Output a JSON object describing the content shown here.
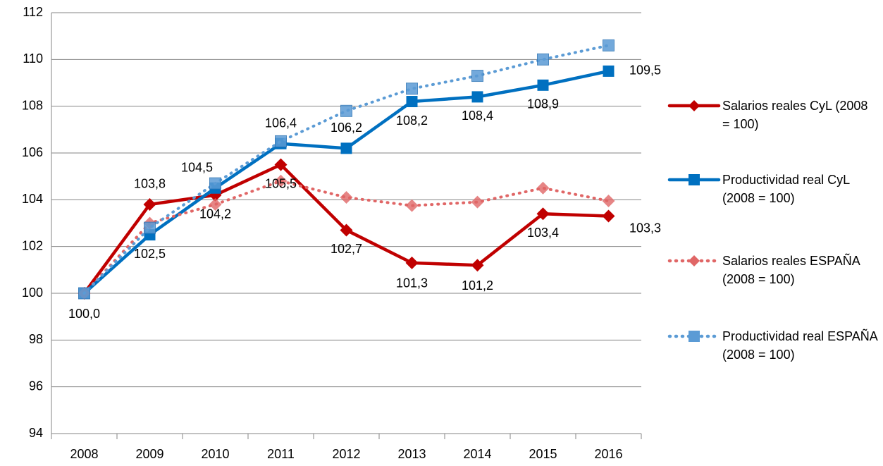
{
  "chart_data": {
    "type": "line",
    "categories": [
      "2008",
      "2009",
      "2010",
      "2011",
      "2012",
      "2013",
      "2014",
      "2015",
      "2016"
    ],
    "ylim": [
      94,
      112
    ],
    "yticks": [
      94,
      96,
      98,
      100,
      102,
      104,
      106,
      108,
      110,
      112
    ],
    "grid": true,
    "series": [
      {
        "name": "Salarios reales CyL (2008 = 100)",
        "color": "#c00000",
        "style": "solid",
        "marker": "diamond",
        "values": [
          100.0,
          103.8,
          104.2,
          105.5,
          102.7,
          101.3,
          101.2,
          103.4,
          103.3
        ],
        "value_labels": [
          "100,0",
          "103,8",
          "104,2",
          "105,5",
          "102,7",
          "101,3",
          "101,2",
          "103,4",
          "103,3"
        ]
      },
      {
        "name": "Productividad real CyL (2008 = 100)",
        "color": "#0070c0",
        "style": "solid",
        "marker": "square",
        "values": [
          100.0,
          102.5,
          104.5,
          106.4,
          106.2,
          108.2,
          108.4,
          108.9,
          109.5
        ],
        "value_labels": [
          null,
          "102,5",
          "104,5",
          "106,4",
          "106,2",
          "108,2",
          "108,4",
          "108,9",
          "109,5"
        ]
      },
      {
        "name": "Salarios reales ESPAÑA (2008 = 100)",
        "color": "#e06666",
        "style": "dotted",
        "marker": "diamond",
        "values": [
          100.0,
          103.0,
          103.8,
          104.8,
          104.1,
          103.75,
          103.9,
          104.5,
          103.95
        ]
      },
      {
        "name": "Productividad real ESPAÑA (2008 = 100)",
        "color": "#5b9bd5",
        "style": "dotted",
        "marker": "square",
        "values": [
          100.0,
          102.8,
          104.7,
          106.5,
          107.8,
          108.75,
          109.3,
          110.0,
          110.6
        ]
      }
    ]
  }
}
